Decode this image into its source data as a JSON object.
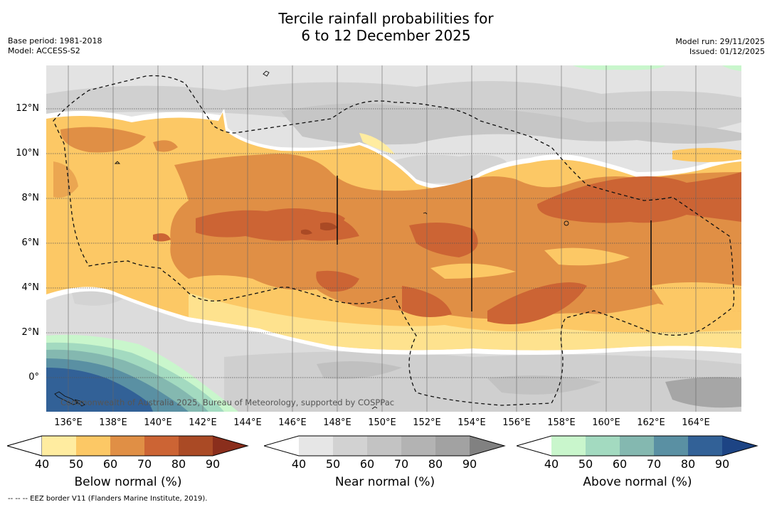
{
  "title": {
    "line1": "Tercile rainfall probabilities for",
    "line2": "6 to 12 December 2025"
  },
  "meta_left": {
    "base_period": "Base period: 1981-2018",
    "model": "Model: ACCESS-S2"
  },
  "meta_right": {
    "model_run": "Model run: 29/11/2025",
    "issued": "Issued: 01/12/2025"
  },
  "latitude_labels": [
    "12°N",
    "10°N",
    "8°N",
    "6°N",
    "4°N",
    "2°N",
    "0°"
  ],
  "longitude_labels": [
    "136°E",
    "138°E",
    "140°E",
    "142°E",
    "144°E",
    "146°E",
    "148°E",
    "150°E",
    "152°E",
    "154°E",
    "156°E",
    "158°E",
    "160°E",
    "162°E",
    "164°E"
  ],
  "watermark": "Commonwealth of Australia 2025, Bureau of Meteorology, supported by COSPPac",
  "footnote": "--  --  -- EEZ border V11 (Flanders Marine Institute, 2019).",
  "colorbars": [
    {
      "title": "Below normal (%)",
      "ticks": [
        "40",
        "50",
        "60",
        "70",
        "80",
        "90"
      ],
      "colors": [
        "#ffffff",
        "#ffeca0",
        "#fcc865",
        "#e08f45",
        "#cc6434",
        "#aa4a25",
        "#8a2e1c"
      ]
    },
    {
      "title": "Near normal (%)",
      "ticks": [
        "40",
        "50",
        "60",
        "70",
        "80",
        "90"
      ],
      "colors": [
        "#ffffff",
        "#e6e6e6",
        "#d2d2d2",
        "#c3c3c3",
        "#b3b3b3",
        "#a2a2a2",
        "#818181"
      ]
    },
    {
      "title": "Above normal (%)",
      "ticks": [
        "40",
        "50",
        "60",
        "70",
        "80",
        "90"
      ],
      "colors": [
        "#ffffff",
        "#c9f6cc",
        "#a3dac0",
        "#84b8b0",
        "#5a90a3",
        "#326197",
        "#1d4484"
      ]
    }
  ]
}
